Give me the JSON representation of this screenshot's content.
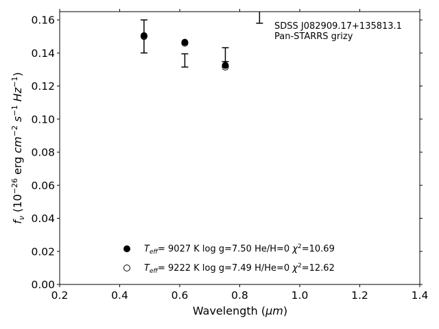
{
  "chart_data": {
    "type": "scatter",
    "xlabel_main": "Wavelength (",
    "xlabel_unit": "μm",
    "xlabel_close": ")",
    "ylabel_f": "f",
    "ylabel_nu": "ν",
    "ylabel_rest": " (10",
    "ylabel_exp": "−26",
    "ylabel_erg": " erg ",
    "ylabel_cm": "cm",
    "ylabel_cm_exp": "−2",
    "ylabel_s": " s",
    "ylabel_s_exp": "−1",
    "ylabel_hz": " Hz",
    "ylabel_hz_exp": "−1",
    "ylabel_close": ")",
    "xlim": [
      0.2,
      1.4
    ],
    "ylim": [
      0.0,
      0.165
    ],
    "xticks": [
      0.2,
      0.4,
      0.6,
      0.8,
      1.0,
      1.2,
      1.4
    ],
    "xtick_labels": [
      "0.2",
      "0.4",
      "0.6",
      "0.8",
      "1.0",
      "1.2",
      "1.4"
    ],
    "yticks": [
      0.0,
      0.02,
      0.04,
      0.06,
      0.08,
      0.1,
      0.12,
      0.14,
      0.16
    ],
    "ytick_labels": [
      "0.00",
      "0.02",
      "0.04",
      "0.06",
      "0.08",
      "0.10",
      "0.12",
      "0.14",
      "0.16"
    ],
    "grid": false,
    "legend_placement": "bottom-center",
    "annotation_lines": [
      "SDSS J082909.17+135813.1",
      "Pan-STARRS grizy"
    ],
    "observed": {
      "x": [
        0.481,
        0.617,
        0.752,
        0.866
      ],
      "y": [
        0.15,
        0.1355,
        0.139,
        0.168
      ],
      "err": [
        0.01,
        0.004,
        0.0042,
        0.01
      ]
    },
    "series": [
      {
        "label_teff": "T",
        "label_eff": "eff",
        "label_value": "=  9027 K  log g=7.50  He/H=0  ",
        "label_chi": "χ",
        "label_chi_exp": "2",
        "label_chi_value": "=10.69",
        "marker": "filled-circle",
        "x": [
          0.481,
          0.617,
          0.752
        ],
        "y": [
          0.1505,
          0.1465,
          0.1325
        ]
      },
      {
        "label_teff": "T",
        "label_eff": "eff",
        "label_value": "=  9222 K  log g=7.49  H/He=0  ",
        "label_chi": "χ",
        "label_chi_exp": "2",
        "label_chi_value": "=12.62",
        "marker": "open-circle",
        "x": [
          0.481,
          0.617,
          0.752
        ],
        "y": [
          0.15,
          0.146,
          0.1315
        ]
      }
    ]
  }
}
